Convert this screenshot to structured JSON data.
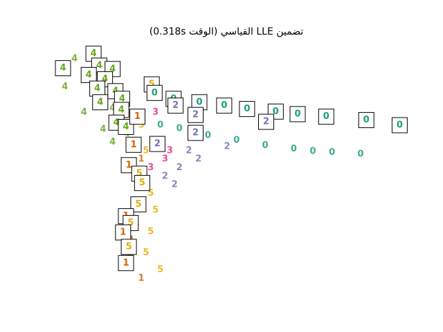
{
  "chart_data": {
    "type": "scatter",
    "title": "تضمين LLE القياسي (الوقت 0.318s)",
    "xlabel": "",
    "ylabel": "",
    "axes_visible": false,
    "grid": false,
    "xlim": [
      -0.16,
      0.2
    ],
    "ylim": [
      -0.16,
      0.14
    ],
    "marker": "digit text",
    "classes": [
      {
        "label": "0",
        "color": "#1b9e77"
      },
      {
        "label": "1",
        "color": "#d95f02"
      },
      {
        "label": "2",
        "color": "#7570b3"
      },
      {
        "label": "3",
        "color": "#e7298a"
      },
      {
        "label": "4",
        "color": "#66a61e"
      },
      {
        "label": "5",
        "color": "#e6ab02"
      }
    ],
    "points": [
      {
        "label": "0",
        "x": 0.16,
        "y": 0.006
      },
      {
        "label": "0",
        "x": 0.11,
        "y": 0.009
      },
      {
        "label": "0",
        "x": 0.06,
        "y": 0.016
      },
      {
        "label": "0",
        "x": 0.03,
        "y": 0.022
      },
      {
        "label": "0",
        "x": 0.0,
        "y": 0.028
      },
      {
        "label": "0",
        "x": -0.03,
        "y": 0.036
      },
      {
        "label": "0",
        "x": -0.05,
        "y": 0.04
      },
      {
        "label": "0",
        "x": -0.07,
        "y": 0.046
      },
      {
        "label": "0",
        "x": 0.13,
        "y": 0.008
      },
      {
        "label": "0",
        "x": 0.09,
        "y": 0.012
      },
      {
        "label": "4",
        "x": -0.15,
        "y": 0.105
      },
      {
        "label": "4",
        "x": -0.14,
        "y": 0.118
      },
      {
        "label": "4",
        "x": -0.13,
        "y": 0.095
      },
      {
        "label": "4",
        "x": -0.12,
        "y": 0.085
      },
      {
        "label": "4",
        "x": -0.11,
        "y": 0.07
      },
      {
        "label": "4",
        "x": -0.1,
        "y": 0.06
      },
      {
        "label": "4",
        "x": -0.095,
        "y": 0.045
      },
      {
        "label": "4",
        "x": -0.11,
        "y": 0.035
      },
      {
        "label": "4",
        "x": -0.1,
        "y": 0.02
      },
      {
        "label": "4",
        "x": -0.13,
        "y": 0.055
      },
      {
        "label": "4",
        "x": -0.15,
        "y": 0.085
      },
      {
        "label": "4",
        "x": -0.085,
        "y": 0.03
      },
      {
        "label": "2",
        "x": -0.02,
        "y": 0.01
      },
      {
        "label": "2",
        "x": -0.03,
        "y": -0.01
      },
      {
        "label": "2",
        "x": -0.045,
        "y": -0.02
      },
      {
        "label": "2",
        "x": 0.02,
        "y": 0.015
      },
      {
        "label": "2",
        "x": -0.01,
        "y": 0.0
      },
      {
        "label": "2",
        "x": -0.035,
        "y": -0.03
      },
      {
        "label": "3",
        "x": -0.055,
        "y": 0.055
      },
      {
        "label": "3",
        "x": -0.05,
        "y": 0.02
      },
      {
        "label": "3",
        "x": -0.045,
        "y": 0.0
      },
      {
        "label": "3",
        "x": -0.06,
        "y": -0.01
      },
      {
        "label": "3",
        "x": -0.04,
        "y": 0.01
      },
      {
        "label": "5",
        "x": -0.07,
        "y": 0.04
      },
      {
        "label": "5",
        "x": -0.065,
        "y": 0.01
      },
      {
        "label": "5",
        "x": -0.06,
        "y": -0.04
      },
      {
        "label": "5",
        "x": -0.055,
        "y": -0.06
      },
      {
        "label": "5",
        "x": -0.06,
        "y": -0.085
      },
      {
        "label": "5",
        "x": -0.065,
        "y": -0.11
      },
      {
        "label": "5",
        "x": -0.05,
        "y": -0.13
      },
      {
        "label": "5",
        "x": -0.07,
        "y": -0.02
      },
      {
        "label": "1",
        "x": -0.075,
        "y": -0.02
      },
      {
        "label": "1",
        "x": -0.07,
        "y": -0.05
      },
      {
        "label": "1",
        "x": -0.075,
        "y": -0.075
      },
      {
        "label": "1",
        "x": -0.08,
        "y": -0.095
      },
      {
        "label": "1",
        "x": -0.082,
        "y": -0.11
      },
      {
        "label": "1",
        "x": -0.07,
        "y": -0.14
      },
      {
        "label": "1",
        "x": -0.07,
        "y": 0.0
      }
    ],
    "thumbnails": [
      {
        "label": "4",
        "x": -0.12,
        "y": 0.124
      },
      {
        "label": "4",
        "x": -0.152,
        "y": 0.107
      },
      {
        "label": "4",
        "x": -0.114,
        "y": 0.11
      },
      {
        "label": "4",
        "x": -0.1,
        "y": 0.106
      },
      {
        "label": "4",
        "x": -0.125,
        "y": 0.099
      },
      {
        "label": "4",
        "x": -0.108,
        "y": 0.094
      },
      {
        "label": "4",
        "x": -0.116,
        "y": 0.083
      },
      {
        "label": "4",
        "x": -0.097,
        "y": 0.08
      },
      {
        "label": "4",
        "x": -0.09,
        "y": 0.071
      },
      {
        "label": "4",
        "x": -0.113,
        "y": 0.067
      },
      {
        "label": "4",
        "x": -0.091,
        "y": 0.058
      },
      {
        "label": "4",
        "x": -0.096,
        "y": 0.043
      },
      {
        "label": "4",
        "x": -0.086,
        "y": 0.038
      },
      {
        "label": "5",
        "x": -0.059,
        "y": 0.088
      },
      {
        "label": "0",
        "x": -0.056,
        "y": 0.078
      },
      {
        "label": "0",
        "x": -0.036,
        "y": 0.071
      },
      {
        "label": "0",
        "x": -0.009,
        "y": 0.067
      },
      {
        "label": "0",
        "x": 0.017,
        "y": 0.063
      },
      {
        "label": "0",
        "x": 0.041,
        "y": 0.059
      },
      {
        "label": "0",
        "x": 0.071,
        "y": 0.056
      },
      {
        "label": "0",
        "x": 0.094,
        "y": 0.053
      },
      {
        "label": "0",
        "x": 0.124,
        "y": 0.05
      },
      {
        "label": "0",
        "x": 0.166,
        "y": 0.046
      },
      {
        "label": "0",
        "x": 0.201,
        "y": 0.04
      },
      {
        "label": "2",
        "x": -0.034,
        "y": 0.063
      },
      {
        "label": "2",
        "x": -0.013,
        "y": 0.052
      },
      {
        "label": "2",
        "x": 0.061,
        "y": 0.044
      },
      {
        "label": "2",
        "x": -0.013,
        "y": 0.031
      },
      {
        "label": "2",
        "x": -0.053,
        "y": 0.018
      },
      {
        "label": "1",
        "x": -0.074,
        "y": 0.05
      },
      {
        "label": "1",
        "x": -0.078,
        "y": 0.017
      },
      {
        "label": "1",
        "x": -0.083,
        "y": -0.007
      },
      {
        "label": "5",
        "x": -0.072,
        "y": -0.017
      },
      {
        "label": "5",
        "x": -0.069,
        "y": -0.028
      },
      {
        "label": "5",
        "x": -0.073,
        "y": -0.053
      },
      {
        "label": "1",
        "x": -0.086,
        "y": -0.067
      },
      {
        "label": "5",
        "x": -0.081,
        "y": -0.075
      },
      {
        "label": "1",
        "x": -0.089,
        "y": -0.086
      },
      {
        "label": "5",
        "x": -0.083,
        "y": -0.103
      },
      {
        "label": "1",
        "x": -0.086,
        "y": -0.122
      }
    ]
  }
}
